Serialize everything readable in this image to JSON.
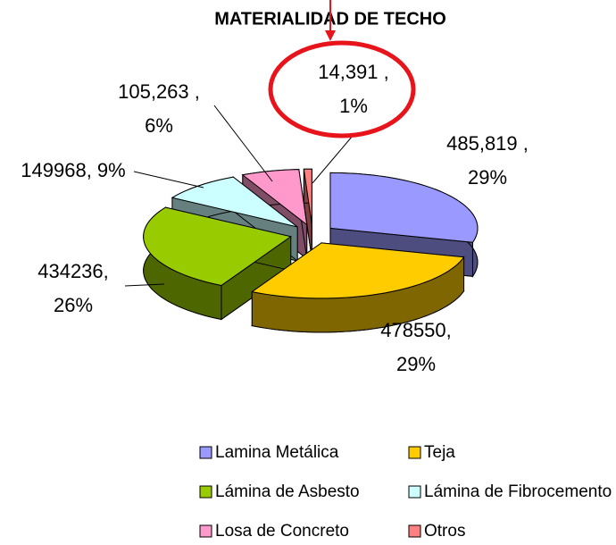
{
  "chart_data": {
    "type": "pie",
    "title": "MATERIALIDAD DE TECHO",
    "categories": [
      "Lamina Metálica",
      "Teja",
      "Lámina de Asbesto",
      "Lámina de Fibrocemento",
      "Losa de Concreto",
      "Otros"
    ],
    "values": [
      485819,
      478550,
      434236,
      149968,
      105263,
      14391
    ],
    "value_labels": [
      [
        "485,819 ,",
        "29%"
      ],
      [
        "478550,",
        "29%"
      ],
      [
        "434236,",
        "26%"
      ],
      [
        "149968, 9%"
      ],
      [
        "105,263 ,",
        "6%"
      ],
      [
        "14,391 ,",
        "1%"
      ]
    ],
    "colors": [
      "#9999ff",
      "#ffcc00",
      "#99cc00",
      "#ccffff",
      "#ff99cc",
      "#ff8080"
    ]
  }
}
